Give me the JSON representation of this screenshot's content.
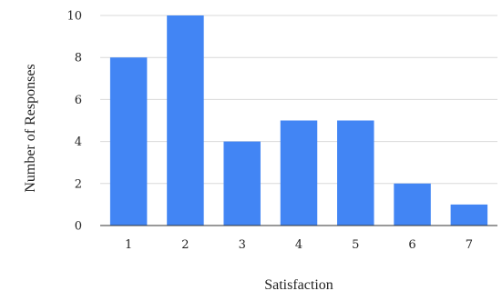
{
  "chart_data": {
    "type": "bar",
    "title": "",
    "xlabel": "Satisfaction",
    "ylabel": "Number of Responses",
    "categories": [
      "1",
      "2",
      "3",
      "4",
      "5",
      "6",
      "7"
    ],
    "values": [
      8,
      10,
      4,
      5,
      5,
      2,
      1
    ],
    "ylim": [
      0,
      10
    ],
    "yticks": [
      0,
      2,
      4,
      6,
      8,
      10
    ],
    "grid": true,
    "legend": "none",
    "bar_color": "#4285F4",
    "grid_color": "#d9d9d9",
    "axis_color": "#333333"
  }
}
